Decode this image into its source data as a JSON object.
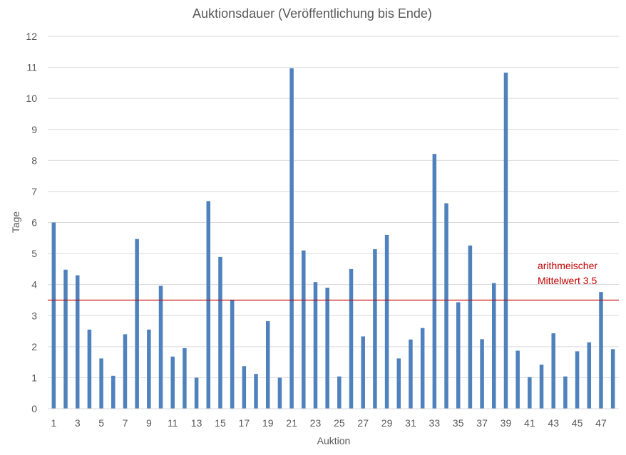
{
  "chart_data": {
    "type": "bar",
    "title": "Auktionsdauer (Veröffentlichung bis Ende)",
    "xlabel": "Auktion",
    "ylabel": "Tage",
    "ylim": [
      0,
      12
    ],
    "yticks": [
      0,
      1,
      2,
      3,
      4,
      5,
      6,
      7,
      8,
      9,
      10,
      11,
      12
    ],
    "grid": true,
    "legend": "none",
    "categories": [
      1,
      2,
      3,
      4,
      5,
      6,
      7,
      8,
      9,
      10,
      11,
      12,
      13,
      14,
      15,
      16,
      17,
      18,
      19,
      20,
      21,
      22,
      23,
      24,
      25,
      26,
      27,
      28,
      29,
      30,
      31,
      32,
      33,
      34,
      35,
      36,
      37,
      38,
      39,
      40,
      41,
      42,
      43,
      44,
      45,
      46,
      47,
      48
    ],
    "x_tick_labels": [
      "1",
      "3",
      "5",
      "7",
      "9",
      "11",
      "13",
      "15",
      "17",
      "19",
      "21",
      "23",
      "25",
      "27",
      "29",
      "31",
      "33",
      "35",
      "37",
      "39",
      "41",
      "43",
      "45",
      "47"
    ],
    "values": [
      6.0,
      4.48,
      4.3,
      2.55,
      1.62,
      1.06,
      2.4,
      5.47,
      2.55,
      3.96,
      1.68,
      1.95,
      1.0,
      6.69,
      4.89,
      3.5,
      1.37,
      1.12,
      2.82,
      1.0,
      10.97,
      5.1,
      4.08,
      3.9,
      1.04,
      4.5,
      2.33,
      5.14,
      5.6,
      1.62,
      2.23,
      2.6,
      8.21,
      6.62,
      3.43,
      5.26,
      2.24,
      4.05,
      10.83,
      1.87,
      1.02,
      1.42,
      2.43,
      1.04,
      1.85,
      2.14,
      3.76,
      1.92
    ],
    "bar_color": "#4F81BD",
    "reference_line": {
      "value": 3.5,
      "color": "#C00000",
      "label_line1": "arithmeischer",
      "label_line2": "Mittelwert 3.5"
    }
  }
}
